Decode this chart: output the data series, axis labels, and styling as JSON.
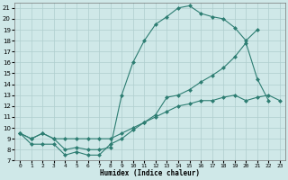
{
  "line1_x": [
    0,
    1,
    2,
    3,
    4,
    5,
    6,
    7,
    8,
    9,
    10,
    11,
    12,
    13,
    14,
    15,
    16,
    17,
    18,
    19,
    20,
    21
  ],
  "line1_y": [
    9.5,
    9.0,
    9.5,
    9.0,
    8.0,
    8.2,
    8.0,
    8.0,
    8.2,
    13.0,
    16.0,
    18.0,
    19.5,
    20.2,
    21.0,
    21.2,
    20.5,
    20.2,
    20.0,
    19.2,
    18.0,
    19.0
  ],
  "line2_x": [
    0,
    1,
    2,
    3,
    4,
    5,
    6,
    7,
    8,
    9,
    10,
    11,
    12,
    13,
    14,
    15,
    16,
    17,
    18,
    19,
    20,
    21,
    22,
    23
  ],
  "line2_y": [
    9.5,
    8.5,
    8.5,
    8.5,
    7.5,
    7.8,
    7.5,
    7.5,
    8.5,
    9.0,
    9.8,
    10.5,
    11.2,
    12.8,
    13.0,
    13.5,
    14.2,
    14.8,
    15.5,
    16.5,
    17.8,
    14.5,
    12.5,
    null
  ],
  "line3_x": [
    0,
    1,
    2,
    3,
    4,
    5,
    6,
    7,
    8,
    9,
    10,
    11,
    12,
    13,
    14,
    15,
    16,
    17,
    18,
    19,
    20,
    21,
    22,
    23
  ],
  "line3_y": [
    9.5,
    9.0,
    9.5,
    9.0,
    9.0,
    9.0,
    9.0,
    9.0,
    9.0,
    9.5,
    10.0,
    10.5,
    11.0,
    11.5,
    12.0,
    12.2,
    12.5,
    12.5,
    12.8,
    13.0,
    12.5,
    12.8,
    13.0,
    12.5
  ],
  "color": "#2d7d72",
  "bg_color": "#cfe8e8",
  "grid_color": "#aecece",
  "xlabel": "Humidex (Indice chaleur)",
  "ylim": [
    7,
    21.5
  ],
  "xlim": [
    -0.5,
    23.5
  ],
  "yticks": [
    7,
    8,
    9,
    10,
    11,
    12,
    13,
    14,
    15,
    16,
    17,
    18,
    19,
    20,
    21
  ],
  "xticks": [
    0,
    1,
    2,
    3,
    4,
    5,
    6,
    7,
    8,
    9,
    10,
    11,
    12,
    13,
    14,
    15,
    16,
    17,
    18,
    19,
    20,
    21,
    22,
    23
  ],
  "xtick_labels": [
    "0",
    "1",
    "2",
    "3",
    "4",
    "5",
    "6",
    "7",
    "8",
    "9",
    "10",
    "11",
    "12",
    "13",
    "14",
    "15",
    "16",
    "17",
    "18",
    "19",
    "20",
    "21",
    "22",
    "23"
  ],
  "markersize": 2.5,
  "linewidth": 0.8
}
